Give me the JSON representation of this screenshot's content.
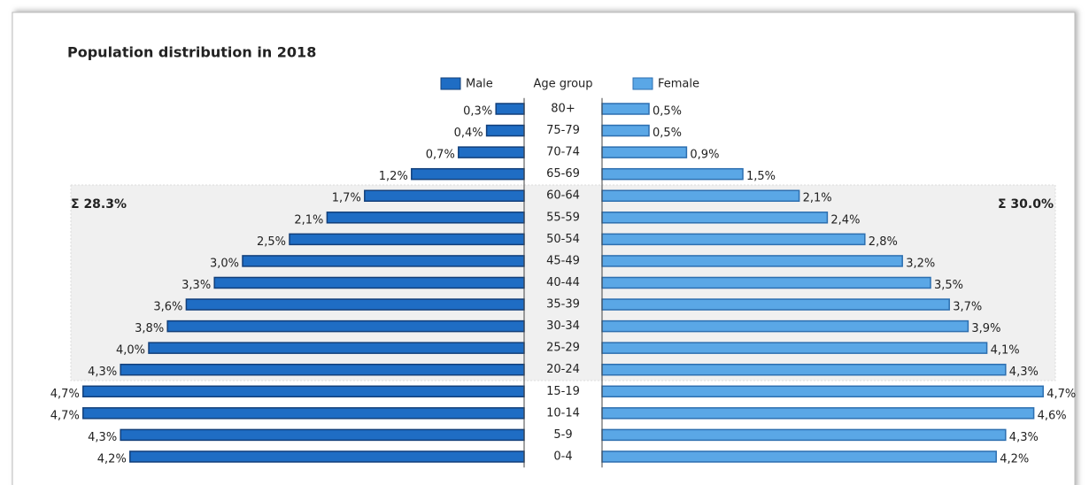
{
  "chart_data": {
    "type": "bar",
    "title": "Population distribution in 2018",
    "y_label": "Age group",
    "categories": [
      "80+",
      "75-79",
      "70-74",
      "65-69",
      "60-64",
      "55-59",
      "50-54",
      "45-49",
      "40-44",
      "35-39",
      "30-34",
      "25-29",
      "20-24",
      "15-19",
      "10-14",
      "5-9",
      "0-4"
    ],
    "series": [
      {
        "name": "Male",
        "color": "#1f6dc4",
        "values": [
          0.3,
          0.4,
          0.7,
          1.2,
          1.7,
          2.1,
          2.5,
          3.0,
          3.3,
          3.6,
          3.8,
          4.0,
          4.3,
          4.7,
          4.7,
          4.3,
          4.2
        ],
        "value_labels": [
          "0,3%",
          "0,4%",
          "0,7%",
          "1,2%",
          "1,7%",
          "2,1%",
          "2,5%",
          "3,0%",
          "3,3%",
          "3,6%",
          "3,8%",
          "4,0%",
          "4,3%",
          "4,7%",
          "4,7%",
          "4,3%",
          "4,2%"
        ]
      },
      {
        "name": "Female",
        "color": "#5aa7e6",
        "values": [
          0.5,
          0.5,
          0.9,
          1.5,
          2.1,
          2.4,
          2.8,
          3.2,
          3.5,
          3.7,
          3.9,
          4.1,
          4.3,
          4.7,
          4.6,
          4.3,
          4.2
        ],
        "value_labels": [
          "0,5%",
          "0,5%",
          "0,9%",
          "1,5%",
          "2,1%",
          "2,4%",
          "2,8%",
          "3,2%",
          "3,5%",
          "3,7%",
          "3,9%",
          "4,1%",
          "4,3%",
          "4,7%",
          "4,6%",
          "4,3%",
          "4,2%"
        ]
      }
    ],
    "annotations": [
      "Σ 28.3%",
      "Σ 30.0%"
    ]
  }
}
